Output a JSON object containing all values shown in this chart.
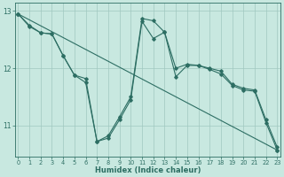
{
  "xlabel": "Humidex (Indice chaleur)",
  "bg_color": "#c8e8e0",
  "grid_color": "#a0c8c0",
  "line_color": "#2d6e63",
  "xlim": [
    -0.3,
    23.3
  ],
  "ylim": [
    10.45,
    13.15
  ],
  "yticks": [
    11,
    12,
    13
  ],
  "xticks": [
    0,
    1,
    2,
    3,
    4,
    5,
    6,
    7,
    8,
    9,
    10,
    11,
    12,
    13,
    14,
    15,
    16,
    17,
    18,
    19,
    20,
    21,
    22,
    23
  ],
  "line1_x": [
    0,
    1,
    2,
    3,
    4,
    5,
    6,
    7,
    8,
    9,
    10,
    11,
    12,
    13,
    14,
    15,
    16,
    17,
    18,
    19,
    20,
    21,
    22,
    23
  ],
  "line1_y": [
    12.95,
    12.75,
    12.62,
    12.6,
    12.22,
    11.88,
    11.82,
    10.72,
    10.82,
    11.15,
    11.5,
    12.87,
    12.83,
    12.63,
    12.0,
    12.07,
    12.05,
    12.0,
    11.95,
    11.72,
    11.65,
    11.62,
    11.1,
    10.62
  ],
  "line2_x": [
    0,
    1,
    2,
    3,
    4,
    5,
    6,
    7,
    8,
    9,
    10,
    11,
    12,
    13,
    14,
    15,
    16,
    17,
    18,
    19,
    20,
    21,
    22,
    23
  ],
  "line2_y": [
    12.95,
    12.73,
    12.62,
    12.6,
    12.22,
    11.88,
    11.75,
    10.72,
    10.78,
    11.1,
    11.45,
    12.82,
    12.52,
    12.63,
    11.85,
    12.05,
    12.05,
    11.98,
    11.9,
    11.7,
    11.62,
    11.6,
    11.05,
    10.57
  ],
  "line3_x": [
    0,
    23
  ],
  "line3_y": [
    12.95,
    10.57
  ],
  "marker_style": "D",
  "marker_size": 1.8,
  "line_width": 0.8
}
